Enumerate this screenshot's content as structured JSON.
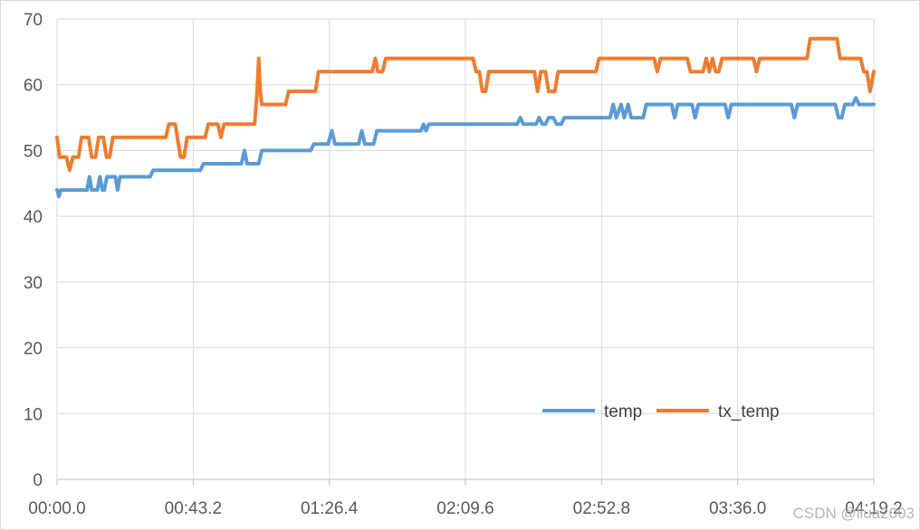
{
  "chart_data": {
    "type": "line",
    "title": "",
    "xlabel": "",
    "ylabel": "",
    "ylim": [
      0,
      70
    ],
    "yticks": [
      0,
      10,
      20,
      30,
      40,
      50,
      60,
      70
    ],
    "xlim": [
      0,
      259.2
    ],
    "xtick_labels": [
      "00:00.0",
      "00:43.2",
      "01:26.4",
      "02:09.6",
      "02:52.8",
      "03:36.0",
      "04:19.2"
    ],
    "grid": true,
    "legend_position": "bottom-right",
    "series": [
      {
        "name": "temp",
        "color": "#5b9bd5",
        "points": [
          [
            0,
            44
          ],
          [
            0.6,
            43
          ],
          [
            1.2,
            44
          ],
          [
            9.5,
            44
          ],
          [
            10.3,
            46
          ],
          [
            11,
            44
          ],
          [
            12.8,
            44
          ],
          [
            13.6,
            46
          ],
          [
            14.4,
            44
          ],
          [
            15,
            44
          ],
          [
            15.8,
            46
          ],
          [
            18.5,
            46
          ],
          [
            19.2,
            44
          ],
          [
            20,
            46
          ],
          [
            29.5,
            46
          ],
          [
            30.5,
            47
          ],
          [
            45.5,
            47
          ],
          [
            46.5,
            48
          ],
          [
            58.5,
            48
          ],
          [
            59.5,
            50
          ],
          [
            60.3,
            48
          ],
          [
            64,
            48
          ],
          [
            65,
            50
          ],
          [
            80.5,
            50
          ],
          [
            81.5,
            51
          ],
          [
            86,
            51
          ],
          [
            87.2,
            53
          ],
          [
            88.2,
            51
          ],
          [
            95.7,
            51
          ],
          [
            96.7,
            53
          ],
          [
            97.7,
            51
          ],
          [
            100.5,
            51
          ],
          [
            101.5,
            53
          ],
          [
            115.5,
            53
          ],
          [
            116.3,
            54
          ],
          [
            117.1,
            53
          ],
          [
            118,
            54
          ],
          [
            146,
            54
          ],
          [
            147,
            55
          ],
          [
            148,
            54
          ],
          [
            152,
            54
          ],
          [
            153,
            55
          ],
          [
            154,
            54
          ],
          [
            155,
            54
          ],
          [
            156,
            55
          ],
          [
            157.5,
            55
          ],
          [
            158.5,
            54
          ],
          [
            160,
            54
          ],
          [
            161,
            55
          ],
          [
            175.5,
            55
          ],
          [
            176.5,
            57
          ],
          [
            177.5,
            55
          ],
          [
            179,
            57
          ],
          [
            180,
            55
          ],
          [
            181.2,
            57
          ],
          [
            182.2,
            55
          ],
          [
            186,
            55
          ],
          [
            187,
            57
          ],
          [
            195,
            57
          ],
          [
            196,
            55
          ],
          [
            197,
            57
          ],
          [
            201.5,
            57
          ],
          [
            202.5,
            55
          ],
          [
            203.5,
            57
          ],
          [
            212,
            57
          ],
          [
            213,
            55
          ],
          [
            214,
            57
          ],
          [
            233,
            57
          ],
          [
            234,
            55
          ],
          [
            235,
            57
          ],
          [
            247,
            57
          ],
          [
            248,
            55
          ],
          [
            249,
            55
          ],
          [
            250,
            57
          ],
          [
            252.5,
            57
          ],
          [
            253.5,
            58
          ],
          [
            254.5,
            57
          ],
          [
            259.2,
            57
          ]
        ]
      },
      {
        "name": "tx_temp",
        "color": "#ed7d31",
        "points": [
          [
            0,
            52
          ],
          [
            0.8,
            49
          ],
          [
            3,
            49
          ],
          [
            4,
            47
          ],
          [
            5,
            49
          ],
          [
            6.8,
            49
          ],
          [
            7.8,
            52
          ],
          [
            10,
            52
          ],
          [
            11,
            49
          ],
          [
            12.2,
            49
          ],
          [
            13.2,
            52
          ],
          [
            14.7,
            52
          ],
          [
            15.7,
            49
          ],
          [
            16.7,
            49
          ],
          [
            17.7,
            52
          ],
          [
            34.5,
            52
          ],
          [
            35.5,
            54
          ],
          [
            37.5,
            54
          ],
          [
            38.5,
            51
          ],
          [
            39.2,
            49
          ],
          [
            40.3,
            49
          ],
          [
            41.3,
            52
          ],
          [
            47,
            52
          ],
          [
            48,
            54
          ],
          [
            51,
            54
          ],
          [
            52,
            52
          ],
          [
            53,
            54
          ],
          [
            62.7,
            54
          ],
          [
            63.5,
            59
          ],
          [
            64,
            64
          ],
          [
            64.5,
            59
          ],
          [
            65,
            57
          ],
          [
            72.5,
            57
          ],
          [
            73.5,
            59
          ],
          [
            82,
            59
          ],
          [
            83,
            62
          ],
          [
            100,
            62
          ],
          [
            101,
            64
          ],
          [
            101.8,
            62
          ],
          [
            103.3,
            62
          ],
          [
            104.3,
            64
          ],
          [
            132,
            64
          ],
          [
            133,
            62
          ],
          [
            134,
            62
          ],
          [
            135,
            59
          ],
          [
            136,
            59
          ],
          [
            137,
            62
          ],
          [
            151.5,
            62
          ],
          [
            152.5,
            59
          ],
          [
            153.5,
            62
          ],
          [
            155,
            62
          ],
          [
            156,
            59
          ],
          [
            158,
            59
          ],
          [
            159,
            62
          ],
          [
            171,
            62
          ],
          [
            172,
            64
          ],
          [
            189.5,
            64
          ],
          [
            190.5,
            62
          ],
          [
            191.5,
            64
          ],
          [
            200,
            64
          ],
          [
            201,
            62
          ],
          [
            205,
            62
          ],
          [
            206,
            64
          ],
          [
            207,
            62
          ],
          [
            208,
            64
          ],
          [
            209,
            62
          ],
          [
            210,
            62
          ],
          [
            211,
            64
          ],
          [
            221,
            64
          ],
          [
            222,
            62
          ],
          [
            223,
            64
          ],
          [
            238,
            64
          ],
          [
            239,
            67
          ],
          [
            247.5,
            67
          ],
          [
            248.5,
            64
          ],
          [
            255,
            64
          ],
          [
            256,
            62
          ],
          [
            257,
            62
          ],
          [
            258,
            59
          ],
          [
            259.2,
            62
          ]
        ]
      }
    ]
  },
  "watermark": "CSDN @liua2003"
}
